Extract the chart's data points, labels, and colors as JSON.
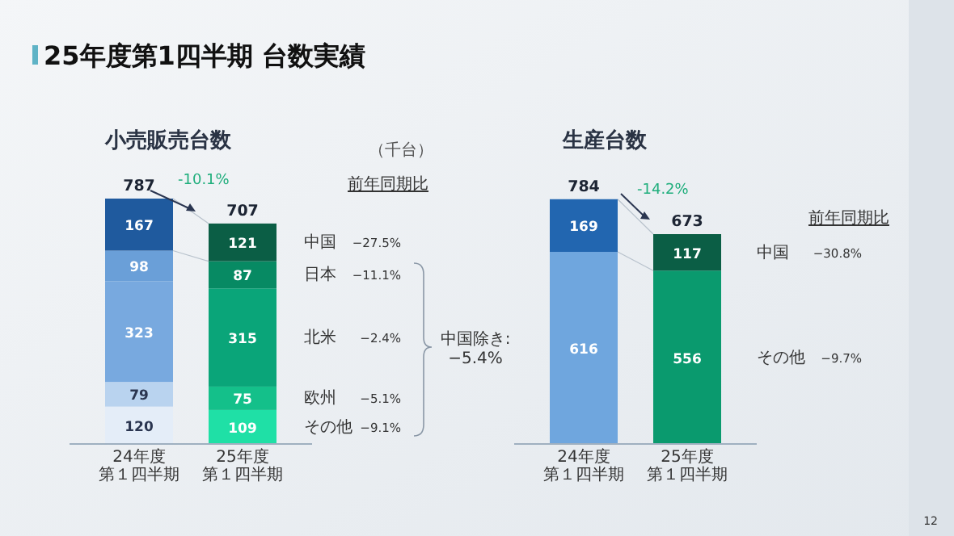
{
  "chart_data": [
    {
      "type": "bar",
      "stacked": true,
      "title": "小売販売台数",
      "categories": [
        "24年度第１四半期",
        "25年度第１四半期"
      ],
      "data_labels": true,
      "totals": [
        "787",
        "707"
      ],
      "series": [
        {
          "name": "その他",
          "colors": [
            "#e4edf8",
            "#1fe0a6"
          ],
          "values": [
            120,
            109
          ]
        },
        {
          "name": "欧州",
          "colors": [
            "#b9d3ef",
            "#14c08a"
          ],
          "values": [
            79,
            75
          ]
        },
        {
          "name": "北米",
          "colors": [
            "#78a9df",
            "#0aa579"
          ],
          "values": [
            323,
            315
          ]
        },
        {
          "name": "日本",
          "colors": [
            "#6a9fd8",
            "#078a63"
          ],
          "values": [
            98,
            87
          ]
        },
        {
          "name": "中国",
          "colors": [
            "#1f5a9e",
            "#0b5e45"
          ],
          "values": [
            167,
            121
          ]
        }
      ],
      "annotations": [
        "25年度第1四半期 台数実績",
        "（千台）",
        "-10.1%",
        "前年同期比",
        "−9.1%",
        "−5.1%",
        "−2.4%",
        "−11.1%",
        "−27.5%",
        "中国除き:\n−5.4%"
      ]
    },
    {
      "type": "bar",
      "stacked": true,
      "title": "生産台数",
      "categories": [
        "24年度第１四半期",
        "25年度第１四半期"
      ],
      "data_labels": true,
      "totals": [
        "784",
        "673"
      ],
      "series": [
        {
          "name": "その他",
          "colors": [
            "#6fa6de",
            "#0a9a6e"
          ],
          "values": [
            616,
            556
          ]
        },
        {
          "name": "中国",
          "colors": [
            "#2266b0",
            "#0b5e45"
          ],
          "values": [
            169,
            117
          ]
        }
      ],
      "annotations": [
        "-14.2%",
        "前年同期比",
        "−9.7%",
        "−30.8%",
        "12"
      ]
    }
  ]
}
